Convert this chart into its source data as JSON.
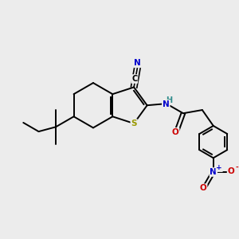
{
  "bg_color": "#ececec",
  "atom_colors": {
    "C": "#000000",
    "N": "#0000cc",
    "S": "#999900",
    "O": "#cc0000",
    "H": "#2e8b8b"
  },
  "bond_color": "#000000",
  "figsize": [
    3.0,
    3.0
  ],
  "dpi": 100,
  "lw": 1.4
}
